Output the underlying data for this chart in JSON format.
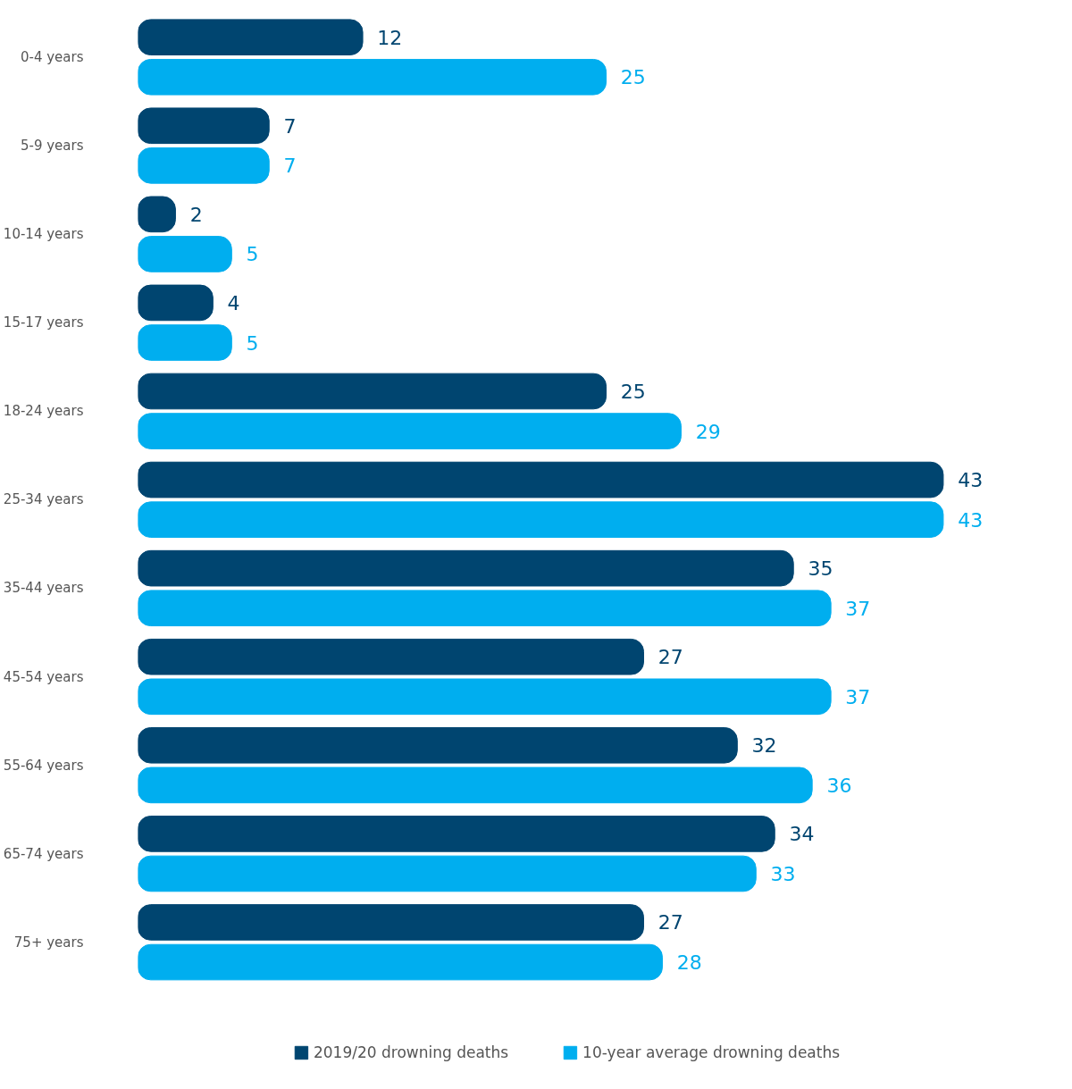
{
  "chart_data": {
    "type": "bar",
    "orientation": "horizontal",
    "categories": [
      "0-4 years",
      "5-9 years",
      "10-14 years",
      "15-17 years",
      "18-24 years",
      "25-34 years",
      "35-44 years",
      "45-54 years",
      "55-64 years",
      "65-74 years",
      "75+ years"
    ],
    "series": [
      {
        "name": "2019/20 drowning deaths",
        "color": "#004570",
        "values": [
          12,
          7,
          2,
          4,
          25,
          43,
          35,
          27,
          32,
          34,
          27
        ]
      },
      {
        "name": "10-year average drowning deaths",
        "color": "#00aeef",
        "values": [
          25,
          7,
          5,
          5,
          29,
          43,
          37,
          37,
          36,
          33,
          28
        ]
      }
    ],
    "data_labels": true,
    "legend": "bottom",
    "grid": false
  }
}
